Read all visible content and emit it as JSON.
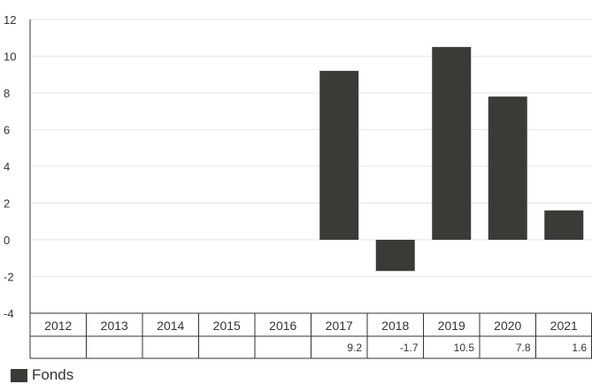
{
  "chart_data": {
    "type": "bar",
    "categories": [
      "2012",
      "2013",
      "2014",
      "2015",
      "2016",
      "2017",
      "2018",
      "2019",
      "2020",
      "2021"
    ],
    "series": [
      {
        "name": "Fonds",
        "values": [
          null,
          null,
          null,
          null,
          null,
          9.2,
          -1.7,
          10.5,
          7.8,
          1.6
        ]
      }
    ],
    "value_labels": [
      "",
      "",
      "",
      "",
      "",
      "9.2",
      "-1.7",
      "10.5",
      "7.8",
      "1.6"
    ],
    "yticks": [
      "12",
      "10",
      "8",
      "6",
      "4",
      "2",
      "0",
      "-2",
      "-4"
    ],
    "ylim": [
      -4,
      12
    ],
    "grid": true,
    "legend_position": "bottom-left",
    "title": "",
    "xlabel": "",
    "ylabel": ""
  },
  "colors": {
    "bar": "#3a3b37",
    "grid": "#e6e6e6",
    "axis": "#333333",
    "table_border": "#333333"
  },
  "legend": {
    "label": "Fonds"
  }
}
